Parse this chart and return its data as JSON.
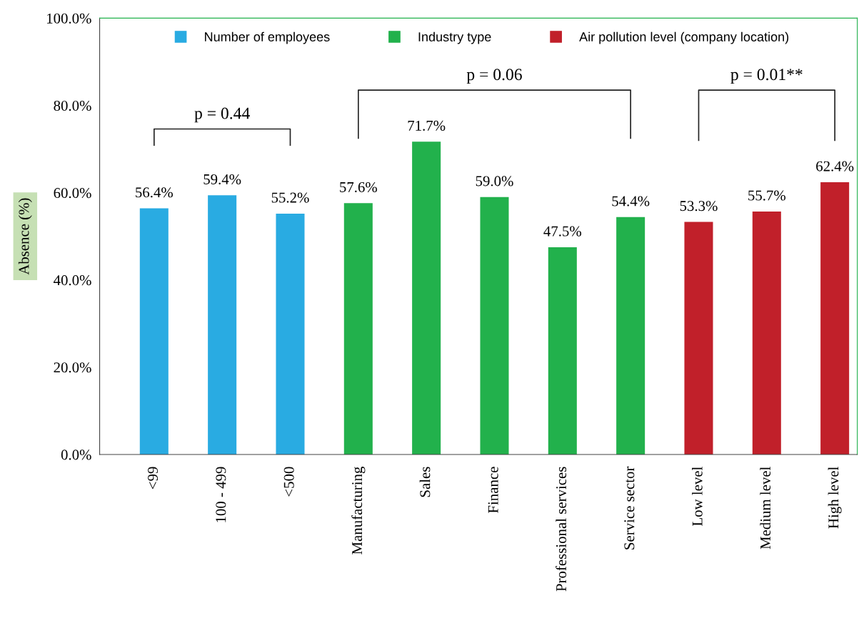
{
  "chart_data": {
    "type": "bar",
    "ylabel": "Absence (%)",
    "categories": [
      "<99",
      "100 - 499",
      "<500",
      "Manufacturing",
      "Sales",
      "Finance",
      "Professional services",
      "Service sector",
      "Low level",
      "Medium level",
      "High level"
    ],
    "series": [
      {
        "name": "Number of employees",
        "color": "#29abe2",
        "values": [
          56.4,
          59.4,
          55.2,
          null,
          null,
          null,
          null,
          null,
          null,
          null,
          null
        ],
        "value_labels": [
          "56.4%",
          "59.4%",
          "55.2%",
          null,
          null,
          null,
          null,
          null,
          null,
          null,
          null
        ]
      },
      {
        "name": "Industry type",
        "color": "#22b14c",
        "values": [
          null,
          null,
          null,
          57.6,
          71.7,
          59.0,
          47.5,
          54.4,
          null,
          null,
          null
        ],
        "value_labels": [
          null,
          null,
          null,
          "57.6%",
          "71.7%",
          "59.0%",
          "47.5%",
          "54.4%",
          null,
          null,
          null
        ]
      },
      {
        "name": "Air pollution level (company location)",
        "color": "#c1202a",
        "values": [
          null,
          null,
          null,
          null,
          null,
          null,
          null,
          null,
          53.3,
          55.7,
          62.4
        ],
        "value_labels": [
          null,
          null,
          null,
          null,
          null,
          null,
          null,
          null,
          "53.3%",
          "55.7%",
          "62.4%"
        ]
      }
    ],
    "ylim": [
      0,
      100
    ],
    "yticks": [
      {
        "value": 0,
        "label": "0.0%"
      },
      {
        "value": 20,
        "label": "20.0%"
      },
      {
        "value": 40,
        "label": "40.0%"
      },
      {
        "value": 60,
        "label": "60.0%"
      },
      {
        "value": 80,
        "label": "80.0%"
      },
      {
        "value": 100,
        "label": "100.0%"
      }
    ],
    "annotations": [
      "p = 0.44",
      "p = 0.06",
      "p = 0.01**"
    ],
    "grid": false,
    "legend": "top"
  }
}
